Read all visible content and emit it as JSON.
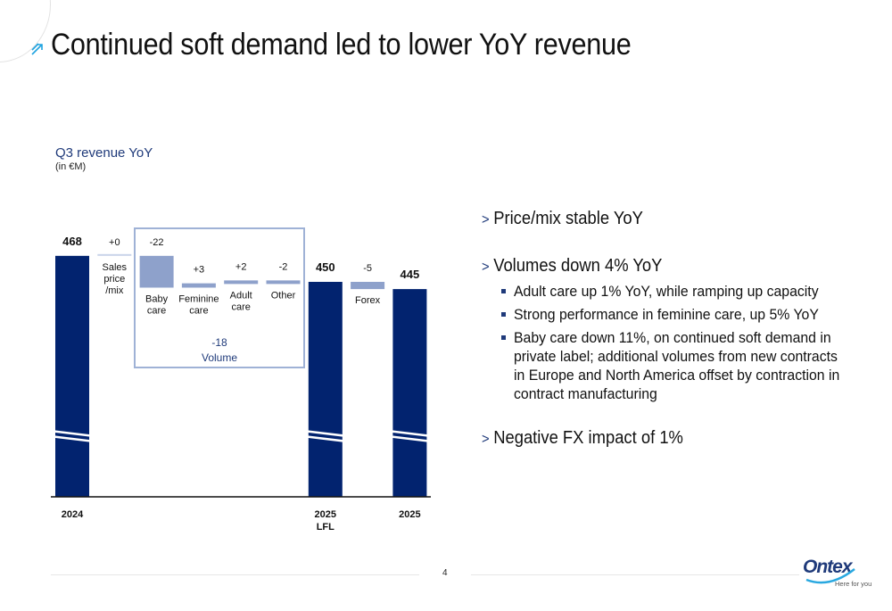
{
  "header": {
    "title": "Continued soft demand led to lower YoY revenue"
  },
  "chart_header": {
    "title": "Q3 revenue YoY",
    "subtitle": "(in €M)"
  },
  "colors": {
    "total": "#02236f",
    "delta": "#8ea1cb",
    "accent": "#1f3a7a",
    "box": "#9fb2d6"
  },
  "chart_data": {
    "type": "bar",
    "subtype": "waterfall",
    "title": "Q3 revenue YoY",
    "unit": "€M",
    "axis_break": true,
    "steps": [
      {
        "id": "2024",
        "kind": "total",
        "value": 468,
        "label": "468",
        "category": "2024"
      },
      {
        "id": "price",
        "kind": "delta",
        "value": 0,
        "label": "+0",
        "category": "Sales price /mix",
        "category_lines": [
          "Sales",
          "price",
          "/mix"
        ]
      },
      {
        "id": "baby",
        "kind": "delta",
        "value": -22,
        "label": "-22",
        "category": "Baby care",
        "category_lines": [
          "Baby",
          "care"
        ]
      },
      {
        "id": "fem",
        "kind": "delta",
        "value": 3,
        "label": "+3",
        "category": "Feminine care",
        "category_lines": [
          "Feminine",
          "care"
        ]
      },
      {
        "id": "adult",
        "kind": "delta",
        "value": 2,
        "label": "+2",
        "category": "Adult care",
        "category_lines": [
          "Adult",
          "care"
        ]
      },
      {
        "id": "other",
        "kind": "delta",
        "value": -2,
        "label": "-2",
        "category": "Other",
        "category_lines": [
          "Other"
        ]
      },
      {
        "id": "2025lfl",
        "kind": "total",
        "value": 450,
        "label": "450",
        "category": "2025 LFL"
      },
      {
        "id": "forex",
        "kind": "delta",
        "value": -5,
        "label": "-5",
        "category": "Forex",
        "category_lines": [
          "Forex"
        ]
      },
      {
        "id": "2025",
        "kind": "total",
        "value": 445,
        "label": "445",
        "category": "2025"
      }
    ],
    "xticks": [
      {
        "step": "2024",
        "lines": [
          "2024"
        ]
      },
      {
        "step": "2025lfl",
        "lines": [
          "2025",
          "LFL"
        ]
      },
      {
        "step": "2025",
        "lines": [
          "2025"
        ]
      }
    ],
    "group": {
      "label_value": "-18",
      "label_text": "Volume",
      "steps": [
        "baby",
        "fem",
        "adult",
        "other"
      ]
    }
  },
  "bullets": [
    {
      "level": 1,
      "text": "Price/mix stable YoY"
    },
    {
      "level": 1,
      "text": "Volumes down 4% YoY"
    },
    {
      "level": 2,
      "text": "Adult care up 1% YoY, while ramping up capacity"
    },
    {
      "level": 2,
      "text": "Strong performance in feminine care, up 5% YoY"
    },
    {
      "level": 2,
      "text": "Baby care down 11%, on continued soft demand in private label; additional volumes from new contracts in Europe and North America offset by contraction in contract manufacturing"
    },
    {
      "level": 1,
      "text": "Negative FX impact of 1%"
    }
  ],
  "footer": {
    "page_number": "4",
    "logo_word": "Ontex",
    "logo_tagline": "Here for you"
  }
}
